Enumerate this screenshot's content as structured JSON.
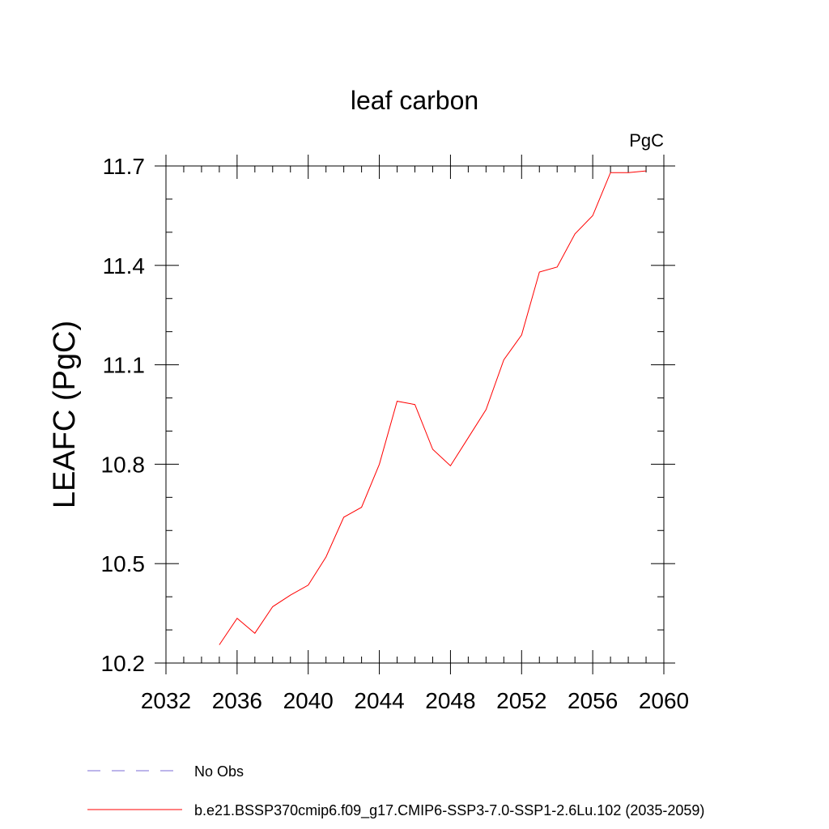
{
  "chart_data": {
    "type": "line",
    "title": "leaf carbon",
    "units_label": "PgC",
    "ylabel": "LEAFC  (PgC)",
    "xlabel": "",
    "xlim": [
      2032,
      2060
    ],
    "ylim": [
      10.2,
      11.7
    ],
    "x_ticks": [
      2032,
      2036,
      2040,
      2044,
      2048,
      2052,
      2056,
      2060
    ],
    "y_ticks": [
      "10.2",
      "10.5",
      "10.8",
      "11.1",
      "11.4",
      "11.7"
    ],
    "grid": false,
    "series": [
      {
        "name": "b.e21.BSSP370cmip6.f09_g17.CMIP6-SSP3-7.0-SSP1-2.6Lu.102 (2035-2059)",
        "color": "#ff0000",
        "x": [
          2035,
          2036,
          2037,
          2038,
          2039,
          2040,
          2041,
          2042,
          2043,
          2044,
          2045,
          2046,
          2047,
          2048,
          2049,
          2050,
          2051,
          2052,
          2053,
          2054,
          2055,
          2056,
          2057,
          2058,
          2059
        ],
        "y": [
          10.255,
          10.335,
          10.29,
          10.37,
          10.405,
          10.435,
          10.52,
          10.64,
          10.67,
          10.8,
          10.99,
          10.98,
          10.845,
          10.795,
          10.88,
          10.965,
          11.115,
          11.19,
          11.38,
          11.395,
          11.495,
          11.55,
          11.68,
          11.68,
          11.685
        ]
      }
    ],
    "legend": [
      {
        "label": "No Obs",
        "color": "#7b6bd6",
        "style": "dashed"
      },
      {
        "label": "b.e21.BSSP370cmip6.f09_g17.CMIP6-SSP3-7.0-SSP1-2.6Lu.102 (2035-2059)",
        "color": "#ff0000",
        "style": "solid"
      }
    ],
    "legend_position": "bottom-left"
  }
}
